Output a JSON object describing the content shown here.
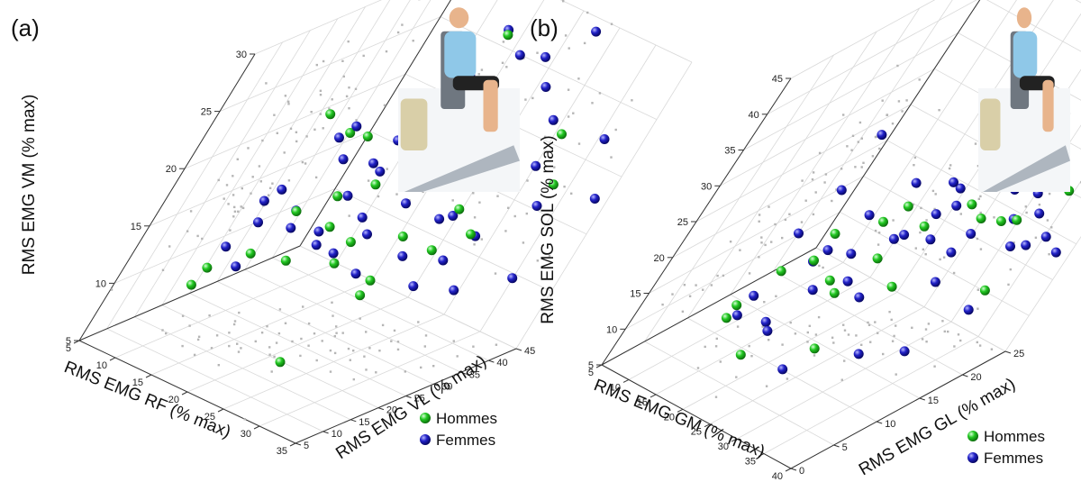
{
  "colors": {
    "hommes": "#22c822",
    "femmes": "#1a1ab4",
    "projection": "#b5b5b5"
  },
  "chart_data": [
    {
      "type": "scatter",
      "panel_label": "(a)",
      "xlabel": "RMS EMG RF (% max)",
      "ylabel": "RMS EMG VL (% max)",
      "zlabel": "RMS EMG VM (% max)",
      "xlim": [
        5,
        35
      ],
      "ylim": [
        5,
        45
      ],
      "zlim": [
        5,
        30
      ],
      "x_ticks": [
        "5",
        "10",
        "15",
        "20",
        "25",
        "30",
        "35"
      ],
      "y_ticks": [
        "5",
        "10",
        "15",
        "20",
        "25",
        "30",
        "35",
        "40",
        "45"
      ],
      "z_ticks": [
        "5",
        "10",
        "15",
        "20",
        "25",
        "30"
      ],
      "legend": [
        "Hommes",
        "Femmes"
      ],
      "series": [
        {
          "name": "Hommes",
          "color": "#22c822",
          "points": [
            [
              9,
              15,
              9
            ],
            [
              10,
              14,
              11
            ],
            [
              12,
              18,
              12
            ],
            [
              14,
              12,
              26
            ],
            [
              15,
              16,
              17
            ],
            [
              16,
              20,
              23
            ],
            [
              17,
              22,
              15
            ],
            [
              18,
              14,
              14
            ],
            [
              19,
              24,
              12
            ],
            [
              20,
              20,
              20
            ],
            [
              21,
              25,
              27
            ],
            [
              22,
              18,
              16
            ],
            [
              23,
              26,
              10
            ],
            [
              24,
              24,
              12
            ],
            [
              25,
              28,
              22
            ],
            [
              26,
              30,
              14
            ],
            [
              27,
              22,
              25
            ],
            [
              28,
              26,
              19
            ],
            [
              30,
              28,
              17
            ],
            [
              31,
              33,
              25
            ],
            [
              33,
              34,
              21
            ],
            [
              20,
              30,
              31
            ],
            [
              28,
              5,
              10
            ],
            [
              13,
              22,
              22
            ],
            [
              18,
              17,
              19
            ],
            [
              22,
              30,
              14
            ]
          ]
        },
        {
          "name": "Femmes",
          "color": "#1a1ab4",
          "points": [
            [
              8,
              20,
              11
            ],
            [
              9,
              22,
              13
            ],
            [
              10,
              18,
              16
            ],
            [
              11,
              25,
              14
            ],
            [
              12,
              24,
              13
            ],
            [
              12,
              16,
              18
            ],
            [
              13,
              20,
              22
            ],
            [
              14,
              22,
              20
            ],
            [
              14,
              30,
              18
            ],
            [
              15,
              26,
              12
            ],
            [
              15,
              18,
              24
            ],
            [
              16,
              24,
              17
            ],
            [
              16,
              28,
              21
            ],
            [
              17,
              20,
              15
            ],
            [
              17,
              26,
              19
            ],
            [
              18,
              30,
              13
            ],
            [
              18,
              22,
              25
            ],
            [
              19,
              24,
              16
            ],
            [
              19,
              32,
              20
            ],
            [
              20,
              26,
              22
            ],
            [
              20,
              36,
              28
            ],
            [
              21,
              28,
              17
            ],
            [
              21,
              30,
              23
            ],
            [
              22,
              24,
              12
            ],
            [
              22,
              32,
              18
            ],
            [
              23,
              28,
              24
            ],
            [
              23,
              34,
              15
            ],
            [
              24,
              30,
              20
            ],
            [
              24,
              38,
              26
            ],
            [
              25,
              26,
              14
            ],
            [
              25,
              34,
              22
            ],
            [
              26,
              30,
              17
            ],
            [
              26,
              36,
              19
            ],
            [
              27,
              32,
              13
            ],
            [
              27,
              38,
              24
            ],
            [
              28,
              34,
              15
            ],
            [
              29,
              36,
              21
            ],
            [
              30,
              40,
              17
            ],
            [
              31,
              30,
              12
            ],
            [
              32,
              42,
              23
            ],
            [
              33,
              38,
              12
            ],
            [
              34,
              44,
              18
            ],
            [
              18,
              34,
              30
            ],
            [
              24,
              42,
              30
            ],
            [
              13,
              14,
              12
            ],
            [
              16,
              36,
              25
            ],
            [
              20,
              20,
              14
            ],
            [
              29,
              24,
              13
            ],
            [
              15,
              32,
              20
            ],
            [
              22,
              38,
              28
            ]
          ]
        }
      ]
    },
    {
      "type": "scatter",
      "panel_label": "(b)",
      "xlabel": "RMS EMG GM (% max)",
      "ylabel": "RMS EMG GL (% max)",
      "zlabel": "RMS EMG SOL (% max)",
      "xlim": [
        5,
        40
      ],
      "ylim": [
        0,
        25
      ],
      "zlim": [
        5,
        45
      ],
      "x_ticks": [
        "5",
        "10",
        "15",
        "20",
        "25",
        "30",
        "35",
        "40"
      ],
      "y_ticks": [
        "0",
        "5",
        "10",
        "15",
        "20",
        "25"
      ],
      "z_ticks": [
        "5",
        "10",
        "15",
        "20",
        "25",
        "30",
        "35",
        "40",
        "45"
      ],
      "legend": [
        "Hommes",
        "Femmes"
      ],
      "series": [
        {
          "name": "Hommes",
          "color": "#22c822",
          "points": [
            [
              8,
              24,
              43
            ],
            [
              10,
              24,
              43
            ],
            [
              12,
              8,
              11
            ],
            [
              14,
              5,
              12
            ],
            [
              15,
              8,
              17
            ],
            [
              16,
              12,
              20
            ],
            [
              17,
              10,
              18
            ],
            [
              18,
              14,
              13
            ],
            [
              19,
              15,
              11
            ],
            [
              20,
              14,
              22
            ],
            [
              21,
              16,
              16
            ],
            [
              22,
              14,
              25
            ],
            [
              23,
              18,
              20
            ],
            [
              24,
              18,
              12
            ],
            [
              26,
              20,
              23
            ],
            [
              28,
              20,
              29
            ],
            [
              30,
              22,
              21
            ],
            [
              32,
              22,
              22
            ],
            [
              34,
              22,
              13
            ],
            [
              35,
              24,
              26
            ],
            [
              20,
              4,
              10
            ],
            [
              25,
              10,
              9
            ],
            [
              30,
              18,
              24
            ],
            [
              22,
              22,
              28
            ]
          ]
        },
        {
          "name": "Femmes",
          "color": "#1a1ab4",
          "points": [
            [
              9,
              18,
              27
            ],
            [
              10,
              16,
              21
            ],
            [
              11,
              12,
              18
            ],
            [
              12,
              10,
              11
            ],
            [
              13,
              8,
              10
            ],
            [
              14,
              14,
              14
            ],
            [
              15,
              14,
              16
            ],
            [
              16,
              16,
              20
            ],
            [
              17,
              16,
              15
            ],
            [
              18,
              12,
              13
            ],
            [
              18,
              18,
              24
            ],
            [
              19,
              16,
              12
            ],
            [
              20,
              18,
              17
            ],
            [
              21,
              18,
              18
            ],
            [
              22,
              20,
              20
            ],
            [
              22,
              16,
              11
            ],
            [
              23,
              20,
              24
            ],
            [
              24,
              20,
              22
            ],
            [
              25,
              18,
              19
            ],
            [
              25,
              22,
              26
            ],
            [
              26,
              22,
              15
            ],
            [
              27,
              22,
              18
            ],
            [
              28,
              24,
              30
            ],
            [
              28,
              20,
              13
            ],
            [
              29,
              22,
              25
            ],
            [
              30,
              24,
              20
            ],
            [
              31,
              24,
              24
            ],
            [
              32,
              24,
              17
            ],
            [
              33,
              24,
              22
            ],
            [
              34,
              24,
              18
            ],
            [
              36,
              24,
              20
            ],
            [
              38,
              25,
              18
            ],
            [
              24,
              8,
              7
            ],
            [
              30,
              12,
              9
            ],
            [
              33,
              16,
              8
            ],
            [
              20,
              6,
              12
            ],
            [
              26,
              14,
              30
            ],
            [
              35,
              20,
              12
            ],
            [
              27,
              18,
              34
            ],
            [
              16,
              10,
              9
            ]
          ]
        }
      ]
    }
  ]
}
